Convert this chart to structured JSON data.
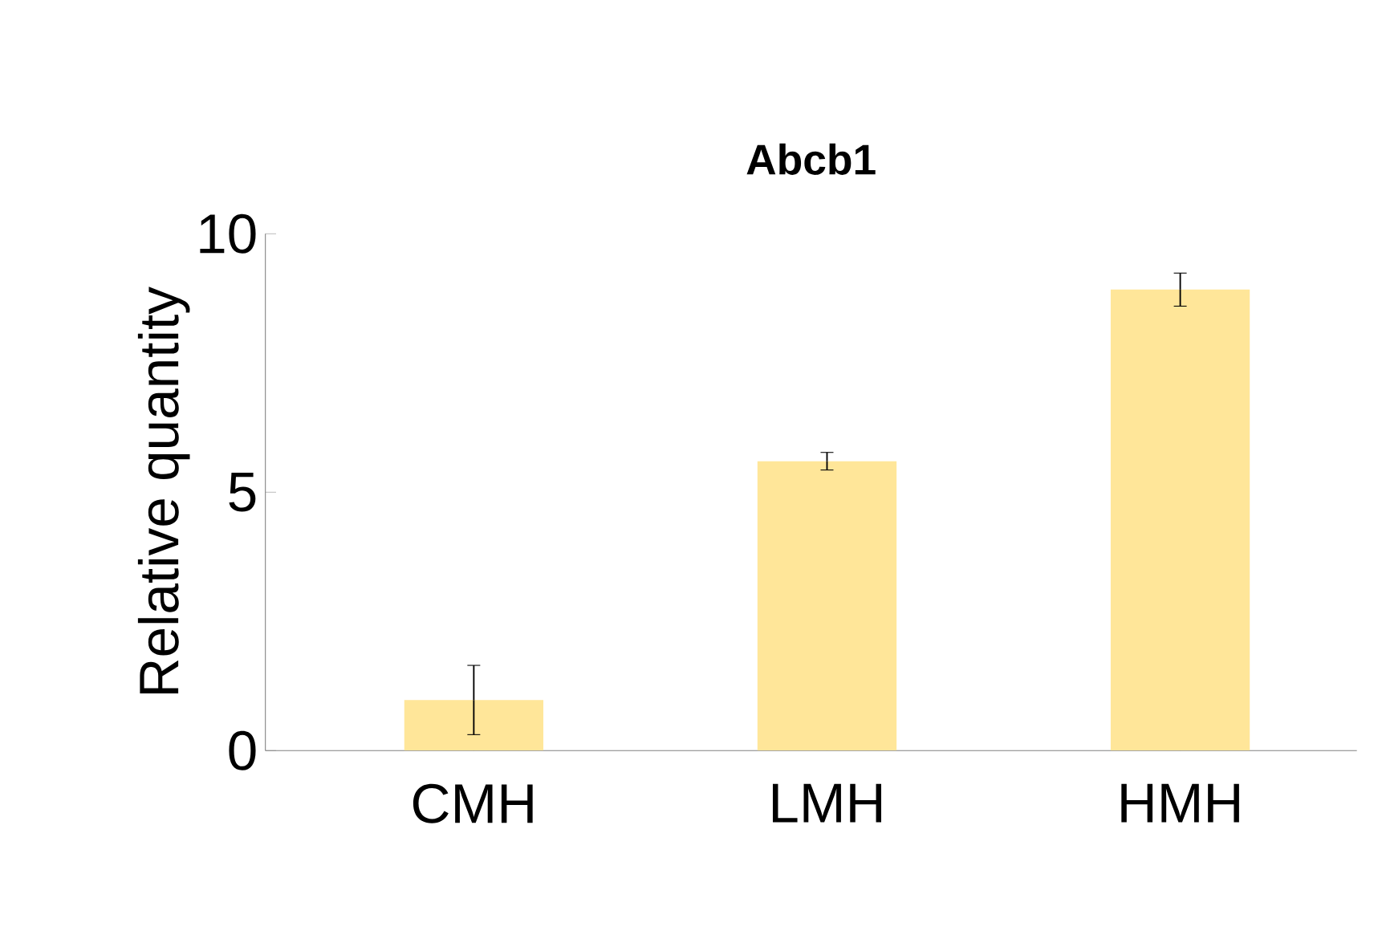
{
  "chart_data": {
    "type": "bar",
    "title": "Abcb1",
    "ylabel": "Relative quantity",
    "categories": [
      "CMH",
      "LMH",
      "HMH"
    ],
    "values": [
      0.98,
      5.6,
      8.92
    ],
    "errors": [
      0.67,
      0.17,
      0.32
    ],
    "color": "#ffe699",
    "ylim": [
      0,
      10
    ],
    "yticks": [
      0,
      5,
      10
    ],
    "grid": false
  }
}
